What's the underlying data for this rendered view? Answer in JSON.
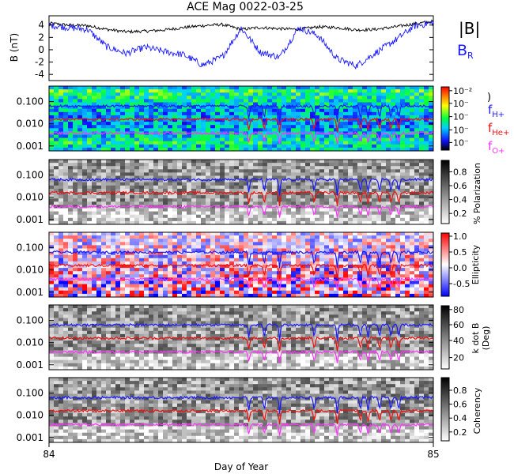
{
  "chart_data": [
    {
      "type": "line",
      "title": "ACE Mag 0022-03-25",
      "ylabel": "B (nT)",
      "yticks": [
        "4",
        "2",
        "0",
        "-2",
        "-4"
      ],
      "ylim": [
        -5,
        5.5
      ],
      "series": [
        {
          "name": "|B|",
          "color": "#000000",
          "x": [
            84.0,
            84.05,
            84.1,
            84.15,
            84.2,
            84.25,
            84.3,
            84.35,
            84.4,
            84.45,
            84.5,
            84.55,
            84.6,
            84.65,
            84.7,
            84.75,
            84.8,
            84.85,
            84.9,
            84.95,
            85.0
          ],
          "values": [
            4.3,
            4.0,
            3.9,
            3.3,
            2.9,
            3.0,
            3.2,
            3.6,
            3.9,
            4.1,
            3.3,
            3.6,
            3.4,
            3.3,
            3.7,
            3.6,
            3.2,
            3.3,
            3.7,
            4.2,
            4.6
          ]
        },
        {
          "name": "B",
          "subscript": "R",
          "color": "#1a1aff",
          "x": [
            84.0,
            84.05,
            84.1,
            84.15,
            84.2,
            84.25,
            84.3,
            84.35,
            84.4,
            84.45,
            84.5,
            84.55,
            84.6,
            84.65,
            84.7,
            84.75,
            84.8,
            84.85,
            84.9,
            84.95,
            85.0
          ],
          "values": [
            4.0,
            3.6,
            3.3,
            0.5,
            -0.6,
            0.4,
            -0.3,
            -0.8,
            -2.5,
            -1.2,
            3.5,
            -0.4,
            -1.2,
            3.6,
            2.3,
            -1.5,
            -2.6,
            -0.5,
            1.5,
            3.8,
            4.4
          ]
        }
      ]
    },
    {
      "type": "heatmap",
      "ylabel": "",
      "colormap": "rainbow",
      "colorbar_ticks": [
        "10⁻²",
        "10⁻",
        "10⁻",
        "10⁻",
        "10⁻"
      ],
      "ylim": [
        0.0006,
        0.5
      ],
      "yscale": "log",
      "yticks": [
        "0.100",
        "0.010",
        "0.001"
      ]
    },
    {
      "type": "heatmap",
      "colormap": "gray",
      "colorbar_label": "% Polarization",
      "colorbar_ticks": [
        "0.8",
        "0.6",
        "0.4",
        "0.2"
      ],
      "ylim": [
        0.0006,
        0.5
      ],
      "yscale": "log",
      "yticks": [
        "0.100",
        "0.010",
        "0.001"
      ]
    },
    {
      "type": "heatmap",
      "colormap": "blue-white-red",
      "colorbar_label": "Ellipticity",
      "colorbar_ticks": [
        "1.0",
        "0.5",
        "0.0",
        "-0.5"
      ],
      "ylim": [
        0.0006,
        0.5
      ],
      "yscale": "log",
      "yticks": [
        "0.100",
        "0.010",
        "0.001"
      ]
    },
    {
      "type": "heatmap",
      "colormap": "gray",
      "colorbar_label": "k dot B",
      "colorbar_unit": "(Deg)",
      "colorbar_ticks": [
        "80",
        "60",
        "40",
        "20"
      ],
      "ylim": [
        0.0006,
        0.5
      ],
      "yscale": "log",
      "yticks": [
        "0.100",
        "0.010",
        "0.001"
      ]
    },
    {
      "type": "heatmap",
      "colormap": "gray",
      "colorbar_label": "Coherency",
      "colorbar_ticks": [
        "0.8",
        "0.6",
        "0.4",
        "0.2"
      ],
      "ylim": [
        0.0006,
        0.5
      ],
      "yscale": "log",
      "yticks": [
        "0.100",
        "0.010",
        "0.001"
      ]
    }
  ],
  "gyro_lines": [
    {
      "name": "f",
      "subscript": "H+",
      "color": "#1a1aff",
      "level": 0.063,
      "dip_to": 0.012
    },
    {
      "name": "f",
      "subscript": "He+",
      "color": "#ee1111",
      "level": 0.016,
      "dip_to": 0.004
    },
    {
      "name": "f",
      "subscript": "O+",
      "color": "#ff33ff",
      "level": 0.0038,
      "dip_to": 0.0012
    }
  ],
  "dips": [
    84.52,
    84.56,
    84.6,
    84.69,
    84.75,
    84.81,
    84.83,
    84.86,
    84.89,
    84.91
  ],
  "xaxis": {
    "label": "Day of Year",
    "ticks": [
      "84",
      "85"
    ],
    "xlim": [
      84.0,
      85.0
    ]
  },
  "colors": {
    "background": "#ffffff",
    "axes": "#000000"
  }
}
